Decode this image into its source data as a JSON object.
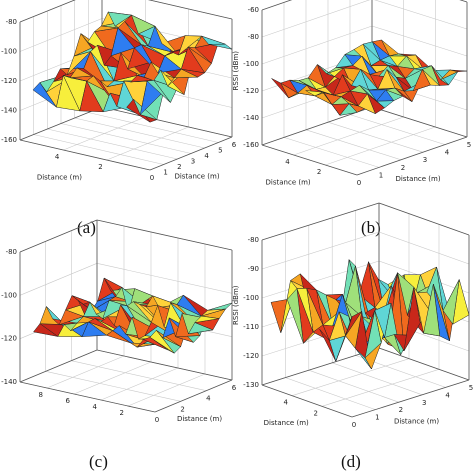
{
  "chart_data": [
    {
      "panel": "a",
      "caption": "(a)",
      "type": "surface",
      "xlabel": "Distance (m)",
      "ylabel": "Distance (m)",
      "zlabel": "",
      "x_ticks": [
        "0",
        "1",
        "2",
        "3",
        "4",
        "5",
        "6"
      ],
      "y_ticks": [
        "2",
        "4"
      ],
      "z_ticks": [
        "-80",
        "-100",
        "-120",
        "-140",
        "-160"
      ],
      "zlim": [
        -160,
        -80
      ],
      "grid": true
    },
    {
      "panel": "b",
      "caption": "(b)",
      "type": "surface",
      "xlabel": "Distance (m)",
      "ylabel": "Distance (m)",
      "zlabel": "RSSI (dBm)",
      "x_ticks": [
        "0",
        "1",
        "2",
        "3",
        "4",
        "5"
      ],
      "y_ticks": [
        "2",
        "4"
      ],
      "z_ticks": [
        "-60",
        "-80",
        "-100",
        "-120",
        "-140",
        "-160"
      ],
      "zlim": [
        -160,
        -60
      ],
      "grid": true
    },
    {
      "panel": "c",
      "caption": "(c)",
      "type": "surface",
      "xlabel": "Distance (m)",
      "ylabel": "",
      "zlabel": "",
      "x_ticks": [
        "0",
        "2",
        "4",
        "6"
      ],
      "y_ticks": [
        "2",
        "4",
        "6",
        "8"
      ],
      "z_ticks": [
        "-80",
        "-100",
        "-120",
        "-140"
      ],
      "zlim": [
        -140,
        -80
      ],
      "grid": true
    },
    {
      "panel": "d",
      "caption": "(d)",
      "type": "surface",
      "xlabel": "Distance (m)",
      "ylabel": "Distance (m)",
      "zlabel": "RSSI (dBm)",
      "x_ticks": [
        "0",
        "1",
        "2",
        "3",
        "4",
        "5"
      ],
      "y_ticks": [
        "2",
        "4"
      ],
      "z_ticks": [
        "-80",
        "-90",
        "-100",
        "-110",
        "-120",
        "-130"
      ],
      "zlim": [
        -130,
        -80
      ],
      "grid": true
    }
  ]
}
